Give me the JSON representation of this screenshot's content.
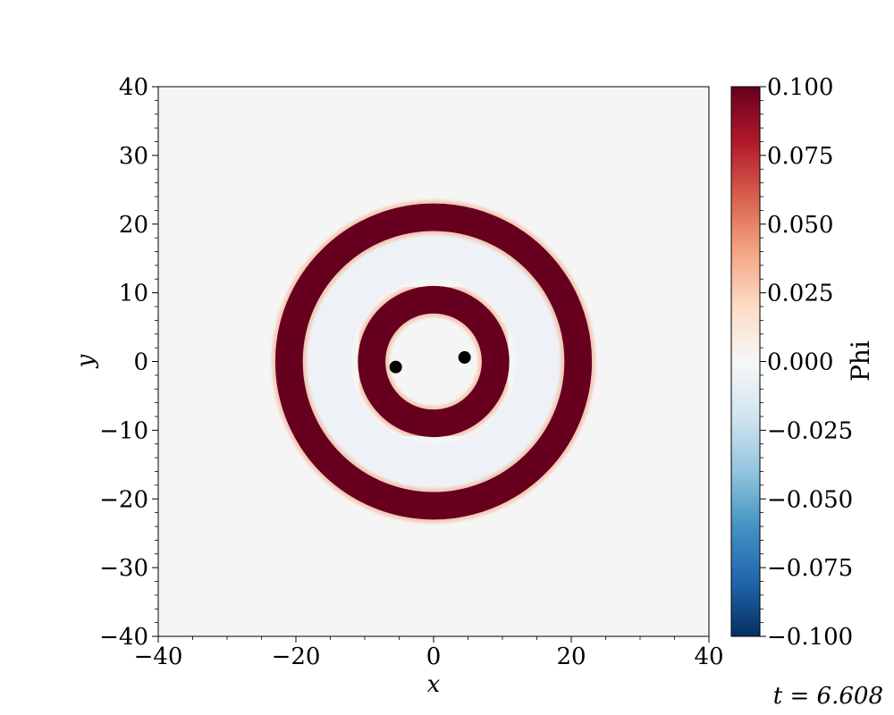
{
  "chart_data": {
    "type": "heatmap",
    "title": "",
    "xlabel": "x",
    "ylabel": "y",
    "xlim": [
      -40,
      40
    ],
    "ylim": [
      -40,
      40
    ],
    "x_ticks": [
      -40,
      -20,
      0,
      20,
      40
    ],
    "y_ticks": [
      -40,
      -30,
      -20,
      -10,
      0,
      10,
      20,
      30,
      40
    ],
    "x_tick_labels": [
      "−40",
      "−20",
      "0",
      "20",
      "40"
    ],
    "y_tick_labels": [
      "−40",
      "−30",
      "−20",
      "−10",
      "0",
      "10",
      "20",
      "30",
      "40"
    ],
    "grid": false,
    "colormap": "RdBu_r",
    "colorbar": {
      "label": "Phi",
      "range": [
        -0.1,
        0.1
      ],
      "ticks": [
        -0.1,
        -0.075,
        -0.05,
        -0.025,
        0.0,
        0.025,
        0.05,
        0.075,
        0.1
      ],
      "tick_labels": [
        "−0.100",
        "−0.075",
        "−0.050",
        "−0.025",
        "0.000",
        "0.025",
        "0.050",
        "0.075",
        "0.100"
      ]
    },
    "rings": [
      {
        "name": "outer-ring",
        "center": [
          0,
          0
        ],
        "inner_radius": 19,
        "outer_radius": 23,
        "value": 0.1
      },
      {
        "name": "inner-ring",
        "center": [
          0,
          0
        ],
        "inner_radius": 7,
        "outer_radius": 11,
        "value": 0.1
      }
    ],
    "points": [
      {
        "x": -5.5,
        "y": -0.8
      },
      {
        "x": 4.5,
        "y": 0.6
      }
    ],
    "background_value": 0.0
  },
  "annotations": {
    "time_label": "t = 6.608"
  },
  "colors": {
    "ring": "#67001f",
    "background": "#f5f5f5",
    "point": "#000000"
  }
}
